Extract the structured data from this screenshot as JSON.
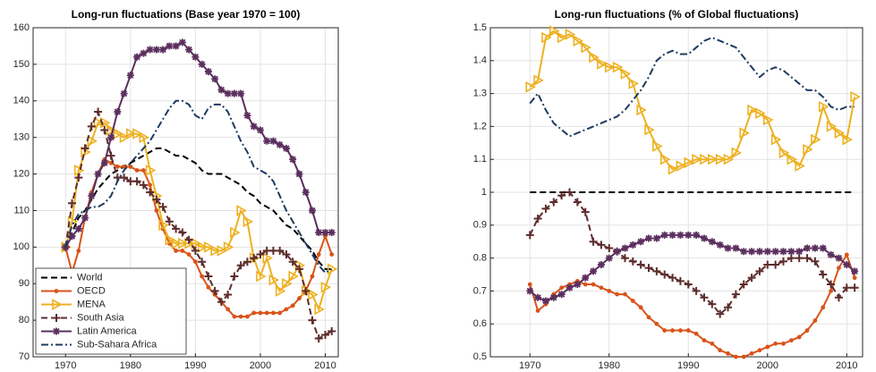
{
  "chart_data": [
    {
      "type": "line",
      "title": "Long-run fluctuations (Base year 1970 = 100)",
      "x": [
        1970,
        1971,
        1972,
        1973,
        1974,
        1975,
        1976,
        1977,
        1978,
        1979,
        1980,
        1981,
        1982,
        1983,
        1984,
        1985,
        1986,
        1987,
        1988,
        1989,
        1990,
        1991,
        1992,
        1993,
        1994,
        1995,
        1996,
        1997,
        1998,
        1999,
        2000,
        2001,
        2002,
        2003,
        2004,
        2005,
        2006,
        2007,
        2008,
        2009,
        2010,
        2011
      ],
      "xlim": [
        1965,
        2012
      ],
      "xticks": [
        1970,
        1980,
        1990,
        2000,
        2010
      ],
      "ylim": [
        70,
        160
      ],
      "yticks": [
        70,
        80,
        90,
        100,
        110,
        120,
        130,
        140,
        150,
        160
      ],
      "grid": true,
      "legend": "lower left",
      "series": [
        {
          "name": "World",
          "color": "#000000",
          "linestyle": "dashed",
          "marker": "none",
          "values": [
            100,
            104,
            108,
            110,
            113,
            116,
            118,
            120,
            121,
            122,
            123,
            124,
            125,
            126,
            127,
            127,
            126,
            125,
            125,
            124,
            123,
            121,
            120,
            120,
            120,
            119,
            118,
            117,
            115,
            114,
            112,
            111,
            110,
            108,
            106,
            105,
            103,
            101,
            99,
            96,
            94,
            94
          ]
        },
        {
          "name": "OECD",
          "color": "#d95319",
          "linestyle": "solid",
          "marker": "circle",
          "values": [
            100,
            93,
            99,
            108,
            115,
            120,
            124,
            123,
            122,
            122,
            122,
            121,
            121,
            117,
            110,
            105,
            101,
            99,
            99,
            98,
            96,
            92,
            89,
            87,
            85,
            83,
            81,
            81,
            81,
            82,
            82,
            82,
            82,
            82,
            83,
            84,
            86,
            88,
            92,
            98,
            103,
            98
          ]
        },
        {
          "name": "MENA",
          "color": "#edb120",
          "linestyle": "solid",
          "marker": "triangle",
          "values": [
            100,
            107,
            121,
            126,
            129,
            134,
            134,
            132,
            131,
            130,
            131,
            131,
            130,
            121,
            114,
            106,
            102,
            101,
            101,
            101,
            101,
            100,
            100,
            99,
            99,
            100,
            104,
            110,
            107,
            97,
            92,
            97,
            91,
            88,
            90,
            92,
            95,
            88,
            87,
            83,
            89,
            94
          ]
        },
        {
          "name": "South Asia",
          "color": "#5e2d2d",
          "linestyle": "dashed",
          "marker": "plus",
          "values": [
            100,
            112,
            119,
            127,
            133,
            137,
            132,
            125,
            119,
            119,
            118,
            118,
            117,
            115,
            113,
            111,
            107,
            105,
            104,
            102,
            99,
            96,
            92,
            88,
            85,
            87,
            92,
            95,
            96,
            97,
            98,
            99,
            99,
            99,
            98,
            96,
            94,
            88,
            80,
            75,
            76,
            77
          ]
        },
        {
          "name": "Latin America",
          "color": "#5b2f5e",
          "linestyle": "solid",
          "marker": "star",
          "values": [
            100,
            103,
            105,
            108,
            114,
            120,
            123,
            130,
            137,
            142,
            147,
            152,
            153,
            154,
            154,
            154,
            155,
            155,
            156,
            154,
            152,
            150,
            148,
            146,
            143,
            142,
            142,
            142,
            136,
            133,
            132,
            129,
            129,
            128,
            127,
            124,
            120,
            115,
            110,
            104,
            104,
            104
          ]
        },
        {
          "name": "Sub-Sahara Africa",
          "color": "#1f3a5f",
          "linestyle": "dashdot",
          "marker": "none",
          "values": [
            100,
            106,
            109,
            110,
            111,
            111,
            112,
            114,
            118,
            121,
            123,
            125,
            127,
            129,
            132,
            135,
            138,
            140,
            140,
            139,
            136,
            135,
            138,
            139,
            139,
            137,
            133,
            129,
            126,
            122,
            121,
            120,
            118,
            114,
            110,
            107,
            104,
            101,
            98,
            95,
            93,
            94
          ]
        }
      ]
    },
    {
      "type": "line",
      "title": "Long-run fluctuations (% of Global fluctuations)",
      "x": [
        1970,
        1971,
        1972,
        1973,
        1974,
        1975,
        1976,
        1977,
        1978,
        1979,
        1980,
        1981,
        1982,
        1983,
        1984,
        1985,
        1986,
        1987,
        1988,
        1989,
        1990,
        1991,
        1992,
        1993,
        1994,
        1995,
        1996,
        1997,
        1998,
        1999,
        2000,
        2001,
        2002,
        2003,
        2004,
        2005,
        2006,
        2007,
        2008,
        2009,
        2010,
        2011
      ],
      "xlim": [
        1965,
        2012
      ],
      "xticks": [
        1970,
        1980,
        1990,
        2000,
        2010
      ],
      "ylim": [
        0.5,
        1.5
      ],
      "yticks": [
        0.5,
        0.6,
        0.7,
        0.8,
        0.9,
        1,
        1.1,
        1.2,
        1.3,
        1.4,
        1.5
      ],
      "grid": true,
      "series": [
        {
          "color": "#000000",
          "linestyle": "dashed",
          "marker": "none",
          "values": [
            1,
            1,
            1,
            1,
            1,
            1,
            1,
            1,
            1,
            1,
            1,
            1,
            1,
            1,
            1,
            1,
            1,
            1,
            1,
            1,
            1,
            1,
            1,
            1,
            1,
            1,
            1,
            1,
            1,
            1,
            1,
            1,
            1,
            1,
            1,
            1,
            1,
            1,
            1,
            1,
            1,
            1
          ]
        },
        {
          "color": "#d95319",
          "linestyle": "solid",
          "marker": "circle",
          "values": [
            0.72,
            0.64,
            0.66,
            0.69,
            0.71,
            0.72,
            0.73,
            0.72,
            0.72,
            0.71,
            0.7,
            0.69,
            0.69,
            0.67,
            0.65,
            0.62,
            0.6,
            0.58,
            0.58,
            0.58,
            0.58,
            0.57,
            0.55,
            0.54,
            0.52,
            0.51,
            0.5,
            0.5,
            0.51,
            0.52,
            0.53,
            0.54,
            0.54,
            0.55,
            0.56,
            0.58,
            0.61,
            0.65,
            0.7,
            0.77,
            0.81,
            0.74
          ]
        },
        {
          "color": "#edb120",
          "linestyle": "solid",
          "marker": "triangle",
          "values": [
            1.32,
            1.34,
            1.47,
            1.49,
            1.47,
            1.48,
            1.46,
            1.44,
            1.41,
            1.39,
            1.38,
            1.38,
            1.36,
            1.33,
            1.25,
            1.19,
            1.14,
            1.1,
            1.07,
            1.08,
            1.09,
            1.1,
            1.1,
            1.1,
            1.1,
            1.1,
            1.12,
            1.18,
            1.25,
            1.24,
            1.22,
            1.16,
            1.12,
            1.1,
            1.08,
            1.13,
            1.16,
            1.26,
            1.2,
            1.18,
            1.16,
            1.29
          ]
        },
        {
          "color": "#5e2d2d",
          "linestyle": "dashed",
          "marker": "plus",
          "values": [
            0.87,
            0.92,
            0.95,
            0.97,
            0.99,
            1.0,
            0.97,
            0.94,
            0.85,
            0.84,
            0.83,
            0.82,
            0.8,
            0.79,
            0.78,
            0.77,
            0.76,
            0.75,
            0.74,
            0.73,
            0.72,
            0.7,
            0.68,
            0.66,
            0.63,
            0.65,
            0.69,
            0.72,
            0.74,
            0.76,
            0.78,
            0.78,
            0.79,
            0.8,
            0.8,
            0.8,
            0.79,
            0.75,
            0.72,
            0.68,
            0.71,
            0.71
          ]
        },
        {
          "color": "#5b2f5e",
          "linestyle": "solid",
          "marker": "star",
          "values": [
            0.7,
            0.68,
            0.67,
            0.68,
            0.69,
            0.71,
            0.72,
            0.74,
            0.76,
            0.78,
            0.8,
            0.82,
            0.83,
            0.84,
            0.85,
            0.86,
            0.86,
            0.87,
            0.87,
            0.87,
            0.87,
            0.87,
            0.86,
            0.85,
            0.84,
            0.83,
            0.83,
            0.82,
            0.82,
            0.82,
            0.82,
            0.82,
            0.82,
            0.82,
            0.82,
            0.83,
            0.83,
            0.83,
            0.81,
            0.8,
            0.78,
            0.76
          ]
        },
        {
          "color": "#1f3a5f",
          "linestyle": "dashdot",
          "marker": "none",
          "values": [
            1.27,
            1.3,
            1.25,
            1.21,
            1.19,
            1.17,
            1.18,
            1.19,
            1.2,
            1.21,
            1.22,
            1.23,
            1.25,
            1.28,
            1.31,
            1.35,
            1.4,
            1.42,
            1.43,
            1.42,
            1.42,
            1.44,
            1.46,
            1.47,
            1.46,
            1.45,
            1.44,
            1.41,
            1.38,
            1.35,
            1.37,
            1.38,
            1.37,
            1.35,
            1.33,
            1.31,
            1.31,
            1.29,
            1.26,
            1.25,
            1.26,
            1.26
          ]
        }
      ]
    }
  ]
}
